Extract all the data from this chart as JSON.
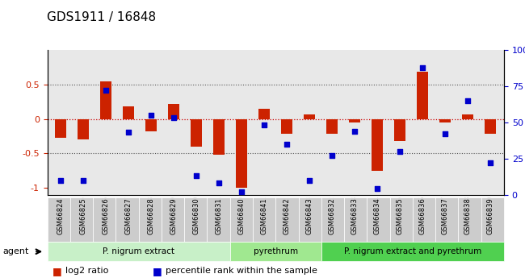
{
  "title": "GDS1911 / 16848",
  "categories": [
    "GSM66824",
    "GSM66825",
    "GSM66826",
    "GSM66827",
    "GSM66828",
    "GSM66829",
    "GSM66830",
    "GSM66831",
    "GSM66840",
    "GSM66841",
    "GSM66842",
    "GSM66843",
    "GSM66832",
    "GSM66833",
    "GSM66834",
    "GSM66835",
    "GSM66836",
    "GSM66837",
    "GSM66838",
    "GSM66839"
  ],
  "log2_ratio": [
    -0.28,
    -0.3,
    0.55,
    0.18,
    -0.18,
    0.22,
    -0.4,
    -0.52,
    -1.0,
    0.15,
    -0.22,
    0.07,
    -0.22,
    -0.05,
    -0.75,
    -0.32,
    0.68,
    -0.05,
    0.07,
    -0.22
  ],
  "percentile": [
    10,
    10,
    72,
    43,
    55,
    53,
    13,
    8,
    2,
    48,
    35,
    10,
    27,
    44,
    4,
    30,
    88,
    42,
    65,
    22
  ],
  "groups": [
    {
      "label": "P. nigrum extract",
      "start": 0,
      "end": 7,
      "color": "#c8f0c8"
    },
    {
      "label": "pyrethrum",
      "start": 8,
      "end": 11,
      "color": "#a0e890"
    },
    {
      "label": "P. nigrum extract and pyrethrum",
      "start": 12,
      "end": 19,
      "color": "#50d050"
    }
  ],
  "bar_color": "#cc2200",
  "dot_color": "#0000cc",
  "ylim": [
    -1.1,
    1.0
  ],
  "y2lim": [
    0,
    100
  ],
  "hline_color": "#cc0000",
  "dotted_color": "#555555",
  "bg_color": "#ffffff",
  "axis_bg": "#e8e8e8"
}
